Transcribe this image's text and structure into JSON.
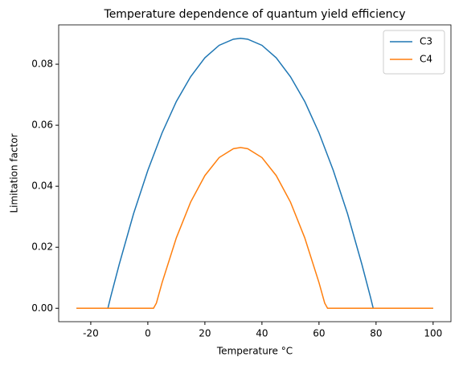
{
  "chart_data": {
    "type": "line",
    "title": "Temperature dependence of quantum yield efficiency",
    "xlabel": "Temperature °C",
    "ylabel": "Limitation factor",
    "xlim": [
      -31.25,
      106.25
    ],
    "ylim": [
      -0.0044,
      0.0929
    ],
    "xticks": [
      -20,
      0,
      20,
      40,
      60,
      80,
      100
    ],
    "yticks": [
      {
        "value": 0,
        "label": "0.00"
      },
      {
        "value": 0.02,
        "label": "0.02"
      },
      {
        "value": 0.04,
        "label": "0.04"
      },
      {
        "value": 0.06,
        "label": "0.06"
      },
      {
        "value": 0.08,
        "label": "0.08"
      }
    ],
    "legend": "upper right",
    "series": [
      {
        "name": "C3",
        "color": "#1f77b4",
        "x": [
          -25,
          -20,
          -15,
          -14,
          -13,
          -10,
          -5,
          0,
          5,
          10,
          15,
          20,
          25,
          30,
          32.5,
          35,
          40,
          45,
          50,
          55,
          60,
          65,
          70,
          75,
          78,
          79,
          80,
          85,
          90,
          95,
          100
        ],
        "values": [
          0,
          0,
          0,
          0,
          0.0038,
          0.0145,
          0.031,
          0.0452,
          0.0575,
          0.0678,
          0.0759,
          0.0821,
          0.0862,
          0.0882,
          0.0885,
          0.0882,
          0.0862,
          0.0821,
          0.0759,
          0.0678,
          0.0575,
          0.0452,
          0.031,
          0.0145,
          0.0038,
          0,
          0,
          0,
          0,
          0,
          0
        ]
      },
      {
        "name": "C4",
        "color": "#ff7f0e",
        "x": [
          -25,
          -20,
          -15,
          -10,
          -5,
          0,
          2,
          3,
          5,
          10,
          15,
          20,
          25,
          30,
          32.5,
          35,
          40,
          45,
          50,
          55,
          60,
          62,
          63,
          65,
          70,
          75,
          80,
          85,
          90,
          95,
          100
        ],
        "values": [
          0,
          0,
          0,
          0,
          0,
          0,
          0,
          0.0017,
          0.0084,
          0.0231,
          0.0348,
          0.0435,
          0.0494,
          0.0523,
          0.0527,
          0.0523,
          0.0494,
          0.0435,
          0.0348,
          0.0231,
          0.0084,
          0.0017,
          0,
          0,
          0,
          0,
          0,
          0,
          0,
          0,
          0
        ]
      }
    ]
  }
}
